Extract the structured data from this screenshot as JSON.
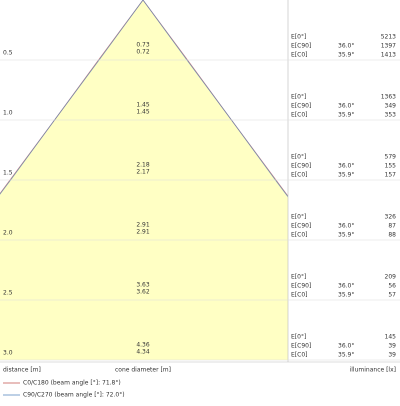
{
  "chart_data": {
    "type": "cone",
    "distance_label": "distance [m]",
    "diameter_label": "cone diameter [m]",
    "illuminance_label": "illuminance [lx]",
    "fill_color": "#ffffc4",
    "series": [
      {
        "name": "C0/C180 (beam angle [°]: 71.8°)",
        "color": "#c0504d"
      },
      {
        "name": "C90/C270 (beam angle [°]: 72.0°)",
        "color": "#4f81bd"
      }
    ],
    "rows": [
      {
        "distance": 0.5,
        "diameters": [
          0.73,
          0.72
        ],
        "e_labels": [
          "E[0°]",
          "E[C90]",
          "E[C0]"
        ],
        "angles": [
          "36.0°",
          "35.9°"
        ],
        "illuminance": [
          5213,
          1397,
          1413
        ]
      },
      {
        "distance": {
          "value": 1,
          "label": "1.0"
        },
        "diameters": [
          1.45,
          1.45
        ],
        "e_labels": [
          "E[0°]",
          "E[C90]",
          "E[C0]"
        ],
        "angles": [
          "36.0°",
          "35.9°"
        ],
        "illuminance": [
          1363,
          349,
          353
        ]
      },
      {
        "distance": 1.5,
        "diameters": [
          2.18,
          2.17
        ],
        "e_labels": [
          "E[0°]",
          "E[C90]",
          "E[C0]"
        ],
        "angles": [
          "36.0°",
          "35.9°"
        ],
        "illuminance": [
          579,
          155,
          157
        ]
      },
      {
        "distance": {
          "value": 2,
          "label": "2.0"
        },
        "diameters": [
          2.91,
          2.91
        ],
        "e_labels": [
          "E[0°]",
          "E[C90]",
          "E[C0]"
        ],
        "angles": [
          "36.0°",
          "35.9°"
        ],
        "illuminance": [
          326,
          87,
          88
        ]
      },
      {
        "distance": 2.5,
        "diameters": [
          3.63,
          3.62
        ],
        "e_labels": [
          "E[0°]",
          "E[C90]",
          "E[C0]"
        ],
        "angles": [
          "36.0°",
          "35.9°"
        ],
        "illuminance": [
          209,
          56,
          57
        ]
      },
      {
        "distance": {
          "value": 3,
          "label": "3.0"
        },
        "diameters": [
          4.36,
          4.34
        ],
        "e_labels": [
          "E[0°]",
          "E[C90]",
          "E[C0]"
        ],
        "angles": [
          "36.0°",
          "35.9°"
        ],
        "illuminance": [
          145,
          39,
          39
        ]
      }
    ]
  }
}
